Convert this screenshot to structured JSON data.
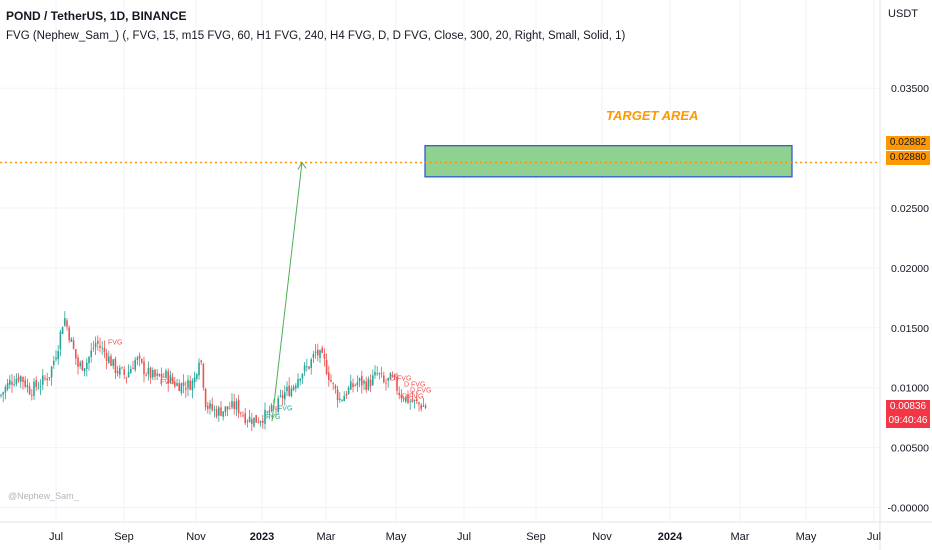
{
  "header": {
    "symbol_line": "POND / TetherUS, 1D, BINANCE",
    "indicator_line": "FVG (Nephew_Sam_) (, FVG, 15, m15 FVG, 60, H1 FVG, 240, H4 FVG, D, D FVG, Close, 300, 20, Right, Small, Solid, 1)",
    "currency": "USDT"
  },
  "watermark": "@Nephew_Sam_",
  "annotations": {
    "target_label": "TARGET AREA",
    "fvg_label": "FVG",
    "d_fvg_label": "D FVG"
  },
  "price_tags": {
    "target_top": "0.02882",
    "target_bottom": "0.02880",
    "last_price": "0.00836",
    "countdown": "09:40:46"
  },
  "colors": {
    "up": "#26a69a",
    "down": "#ef5350",
    "target_fill": "#8fd18f",
    "target_border": "#2a4bd7",
    "level_line": "#ff9800",
    "arrow": "#4caf50"
  },
  "chart_data": {
    "type": "candlestick",
    "y_axis": {
      "ticks": [
        "0.03500",
        "0.02500",
        "0.02000",
        "0.01500",
        "0.01000",
        "0.00500",
        "-0.00000"
      ],
      "tick_values": [
        0.035,
        0.025,
        0.02,
        0.015,
        0.01,
        0.005,
        0.0
      ],
      "range": [
        -0.0005,
        0.0415
      ]
    },
    "x_axis": {
      "ticks": [
        "Jul",
        "Sep",
        "Nov",
        "2023",
        "Mar",
        "May",
        "Jul",
        "Sep",
        "Nov",
        "2024",
        "Mar",
        "May",
        "Jul"
      ],
      "bold": [
        "2023",
        "2024"
      ]
    },
    "price_path": [
      [
        0,
        0.0093
      ],
      [
        10,
        0.0105
      ],
      [
        20,
        0.011
      ],
      [
        30,
        0.0098
      ],
      [
        40,
        0.0103
      ],
      [
        50,
        0.0112
      ],
      [
        58,
        0.0135
      ],
      [
        64,
        0.016
      ],
      [
        70,
        0.0142
      ],
      [
        78,
        0.0118
      ],
      [
        86,
        0.012
      ],
      [
        96,
        0.0138
      ],
      [
        106,
        0.0128
      ],
      [
        116,
        0.0115
      ],
      [
        126,
        0.011
      ],
      [
        136,
        0.0124
      ],
      [
        146,
        0.0113
      ],
      [
        156,
        0.0108
      ],
      [
        166,
        0.011
      ],
      [
        176,
        0.0103
      ],
      [
        186,
        0.0102
      ],
      [
        194,
        0.0105
      ],
      [
        200,
        0.013
      ],
      [
        206,
        0.0085
      ],
      [
        216,
        0.008
      ],
      [
        226,
        0.0082
      ],
      [
        236,
        0.0085
      ],
      [
        246,
        0.0075
      ],
      [
        256,
        0.0073
      ],
      [
        266,
        0.0077
      ],
      [
        276,
        0.0083
      ],
      [
        284,
        0.0095
      ],
      [
        292,
        0.01
      ],
      [
        300,
        0.0112
      ],
      [
        308,
        0.0117
      ],
      [
        316,
        0.013
      ],
      [
        324,
        0.0122
      ],
      [
        332,
        0.0103
      ],
      [
        340,
        0.009
      ],
      [
        348,
        0.0098
      ],
      [
        358,
        0.0105
      ],
      [
        368,
        0.0103
      ],
      [
        378,
        0.0112
      ],
      [
        384,
        0.0103
      ],
      [
        392,
        0.0108
      ],
      [
        400,
        0.0095
      ],
      [
        408,
        0.009
      ],
      [
        416,
        0.0087
      ],
      [
        426,
        0.0084
      ]
    ],
    "target_zone": {
      "x_start": "Jun 2023",
      "x_end": "Apr 2024",
      "y_low": 0.0276,
      "y_high": 0.0302
    },
    "level_line_value": 0.0288,
    "arrow": {
      "from": [
        "Jan 2023",
        0.0072
      ],
      "to": [
        "Feb 2023",
        0.0288
      ]
    },
    "fvg_markers": [
      {
        "label": "FVG",
        "x": 108,
        "y": 0.0136,
        "color": "#ef5350"
      },
      {
        "label": "FVG",
        "x": 160,
        "y": 0.0103,
        "color": "#ef5350"
      },
      {
        "label": "FVG",
        "x": 278,
        "y": 0.0081,
        "color": "#26a69a"
      },
      {
        "label": "FVG",
        "x": 266,
        "y": 0.0074,
        "color": "#26a69a"
      },
      {
        "label": "D FVG",
        "x": 390,
        "y": 0.0106,
        "color": "#ef5350"
      },
      {
        "label": "D FVG",
        "x": 404,
        "y": 0.0101,
        "color": "#ef5350"
      },
      {
        "label": "D FVG",
        "x": 410,
        "y": 0.0096,
        "color": "#ef5350"
      },
      {
        "label": "D FVG",
        "x": 402,
        "y": 0.0091,
        "color": "#ef5350"
      }
    ]
  }
}
